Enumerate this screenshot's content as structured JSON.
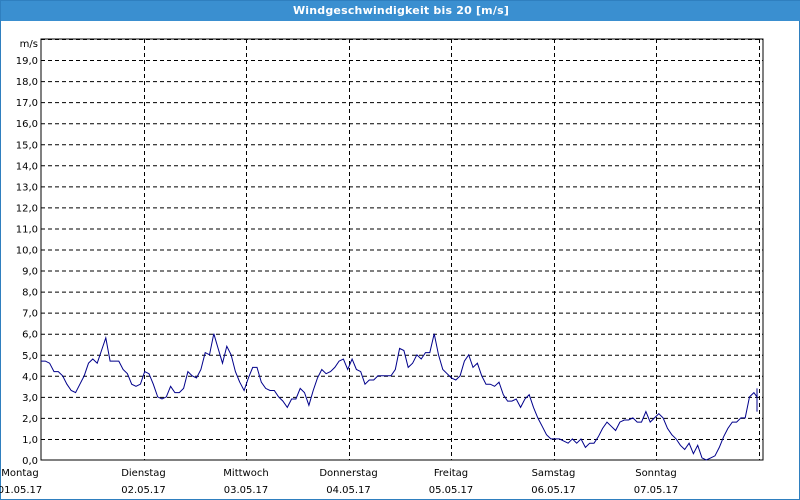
{
  "window": {
    "title": "Windgeschwindigkeit bis 20 [m/s]"
  },
  "colors": {
    "title_bar": "#3a8fd0",
    "line": "#00008b",
    "grid": "#000000"
  },
  "chart_data": {
    "type": "line",
    "title": "Windgeschwindigkeit bis 20 [m/s]",
    "ylabel": "m/s",
    "ylim": [
      0,
      20
    ],
    "yticks": [
      "0,0",
      "1,0",
      "2,0",
      "3,0",
      "4,0",
      "5,0",
      "6,0",
      "7,0",
      "8,0",
      "9,0",
      "10,0",
      "11,0",
      "12,0",
      "13,0",
      "14,0",
      "15,0",
      "16,0",
      "17,0",
      "18,0",
      "19,0"
    ],
    "x_days": [
      {
        "day": "Montag",
        "date": "01.05.17"
      },
      {
        "day": "Dienstag",
        "date": "02.05.17"
      },
      {
        "day": "Mittwoch",
        "date": "03.05.17"
      },
      {
        "day": "Donnerstag",
        "date": "04.05.17"
      },
      {
        "day": "Freitag",
        "date": "05.05.17"
      },
      {
        "day": "Samstag",
        "date": "06.05.17"
      },
      {
        "day": "Sonntag",
        "date": "07.05.17"
      }
    ],
    "grid": true,
    "series": [
      {
        "values": [
          [
            0.0,
            4.7
          ],
          [
            0.05,
            4.7
          ],
          [
            0.1,
            4.6
          ],
          [
            0.15,
            4.2
          ],
          [
            0.2,
            4.2
          ],
          [
            0.25,
            4.0
          ],
          [
            0.3,
            3.6
          ],
          [
            0.35,
            3.3
          ],
          [
            0.4,
            3.2
          ],
          [
            0.45,
            3.6
          ],
          [
            0.5,
            4.0
          ],
          [
            0.55,
            4.6
          ],
          [
            0.6,
            4.8
          ],
          [
            0.65,
            4.6
          ],
          [
            0.7,
            5.2
          ],
          [
            0.75,
            5.8
          ],
          [
            0.8,
            4.7
          ],
          [
            0.85,
            4.7
          ],
          [
            0.9,
            4.7
          ],
          [
            0.95,
            4.3
          ],
          [
            1.0,
            4.1
          ],
          [
            1.05,
            3.6
          ],
          [
            1.1,
            3.5
          ],
          [
            1.15,
            3.6
          ],
          [
            1.2,
            4.2
          ],
          [
            1.25,
            4.1
          ],
          [
            1.3,
            3.6
          ],
          [
            1.35,
            3.0
          ],
          [
            1.4,
            2.9
          ],
          [
            1.45,
            3.0
          ],
          [
            1.5,
            3.5
          ],
          [
            1.55,
            3.2
          ],
          [
            1.6,
            3.2
          ],
          [
            1.65,
            3.4
          ],
          [
            1.7,
            4.2
          ],
          [
            1.75,
            4.0
          ],
          [
            1.8,
            3.9
          ],
          [
            1.85,
            4.3
          ],
          [
            1.9,
            5.1
          ],
          [
            1.95,
            5.0
          ],
          [
            2.0,
            6.0
          ],
          [
            2.05,
            5.3
          ],
          [
            2.1,
            4.6
          ],
          [
            2.15,
            5.4
          ],
          [
            2.2,
            5.0
          ],
          [
            2.25,
            4.2
          ],
          [
            2.3,
            3.7
          ],
          [
            2.35,
            3.3
          ],
          [
            2.4,
            3.9
          ],
          [
            2.45,
            4.4
          ],
          [
            2.5,
            4.4
          ],
          [
            2.55,
            3.7
          ],
          [
            2.6,
            3.4
          ],
          [
            2.65,
            3.3
          ],
          [
            2.7,
            3.3
          ],
          [
            2.75,
            3.0
          ],
          [
            2.8,
            2.8
          ],
          [
            2.85,
            2.5
          ],
          [
            2.9,
            2.9
          ],
          [
            2.95,
            2.9
          ],
          [
            3.0,
            3.4
          ],
          [
            3.05,
            3.2
          ],
          [
            3.1,
            2.6
          ],
          [
            3.15,
            3.3
          ],
          [
            3.2,
            3.9
          ],
          [
            3.25,
            4.3
          ],
          [
            3.3,
            4.1
          ],
          [
            3.35,
            4.2
          ],
          [
            3.4,
            4.4
          ],
          [
            3.45,
            4.7
          ],
          [
            3.5,
            4.8
          ],
          [
            3.55,
            4.3
          ],
          [
            3.6,
            4.8
          ],
          [
            3.65,
            4.3
          ],
          [
            3.7,
            4.2
          ],
          [
            3.75,
            3.6
          ],
          [
            3.8,
            3.8
          ],
          [
            3.85,
            3.8
          ],
          [
            3.9,
            4.0
          ],
          [
            3.95,
            4.0
          ],
          [
            4.0,
            4.0
          ],
          [
            4.05,
            4.0
          ],
          [
            4.1,
            4.3
          ],
          [
            4.15,
            5.3
          ],
          [
            4.2,
            5.2
          ],
          [
            4.25,
            4.4
          ],
          [
            4.3,
            4.6
          ],
          [
            4.35,
            5.0
          ],
          [
            4.4,
            4.8
          ],
          [
            4.45,
            5.1
          ],
          [
            4.5,
            5.1
          ],
          [
            4.55,
            6.0
          ],
          [
            4.6,
            5.0
          ],
          [
            4.65,
            4.3
          ],
          [
            4.7,
            4.1
          ],
          [
            4.75,
            3.9
          ],
          [
            4.8,
            3.8
          ],
          [
            4.85,
            4.0
          ],
          [
            4.9,
            4.7
          ],
          [
            4.95,
            5.0
          ],
          [
            5.0,
            4.4
          ],
          [
            5.05,
            4.6
          ],
          [
            5.1,
            4.0
          ],
          [
            5.15,
            3.6
          ],
          [
            5.2,
            3.6
          ],
          [
            5.25,
            3.5
          ],
          [
            5.3,
            3.7
          ],
          [
            5.35,
            3.1
          ],
          [
            5.4,
            2.8
          ],
          [
            5.45,
            2.8
          ],
          [
            5.5,
            2.9
          ],
          [
            5.55,
            2.5
          ],
          [
            5.6,
            2.9
          ],
          [
            5.65,
            3.1
          ],
          [
            5.7,
            2.5
          ],
          [
            5.75,
            2.0
          ],
          [
            5.8,
            1.6
          ],
          [
            5.85,
            1.2
          ],
          [
            5.9,
            1.0
          ],
          [
            5.95,
            1.0
          ],
          [
            6.0,
            1.0
          ],
          [
            6.05,
            0.9
          ],
          [
            6.1,
            0.8
          ],
          [
            6.15,
            1.0
          ],
          [
            6.2,
            0.8
          ],
          [
            6.25,
            1.0
          ],
          [
            6.3,
            0.6
          ],
          [
            6.35,
            0.8
          ],
          [
            6.4,
            0.8
          ],
          [
            6.45,
            1.1
          ],
          [
            6.5,
            1.5
          ],
          [
            6.55,
            1.8
          ],
          [
            6.6,
            1.6
          ],
          [
            6.65,
            1.4
          ],
          [
            6.7,
            1.8
          ],
          [
            6.75,
            1.9
          ],
          [
            6.8,
            1.9
          ],
          [
            6.85,
            2.0
          ],
          [
            6.9,
            1.8
          ],
          [
            6.95,
            1.8
          ],
          [
            7.0,
            2.3
          ],
          [
            7.05,
            1.8
          ],
          [
            7.1,
            2.0
          ],
          [
            7.15,
            2.2
          ],
          [
            7.2,
            2.0
          ],
          [
            7.25,
            1.5
          ],
          [
            7.3,
            1.2
          ],
          [
            7.35,
            1.0
          ],
          [
            7.4,
            0.7
          ],
          [
            7.45,
            0.5
          ],
          [
            7.5,
            0.8
          ],
          [
            7.55,
            0.3
          ],
          [
            7.6,
            0.7
          ],
          [
            7.65,
            0.1
          ],
          [
            7.7,
            0.0
          ],
          [
            7.75,
            0.1
          ],
          [
            7.8,
            0.2
          ],
          [
            7.85,
            0.6
          ],
          [
            7.9,
            1.1
          ],
          [
            7.95,
            1.5
          ],
          [
            8.0,
            1.8
          ],
          [
            8.05,
            1.8
          ],
          [
            8.1,
            2.0
          ],
          [
            8.15,
            2.0
          ],
          [
            8.2,
            3.0
          ],
          [
            8.25,
            3.2
          ],
          [
            8.3,
            3.0
          ],
          [
            8.35,
            3.1
          ],
          [
            8.4,
            3.3
          ],
          [
            8.45,
            3.0
          ],
          [
            8.5,
            3.0
          ],
          [
            8.55,
            2.3
          ],
          [
            8.6,
            3.4
          ]
        ]
      }
    ]
  }
}
